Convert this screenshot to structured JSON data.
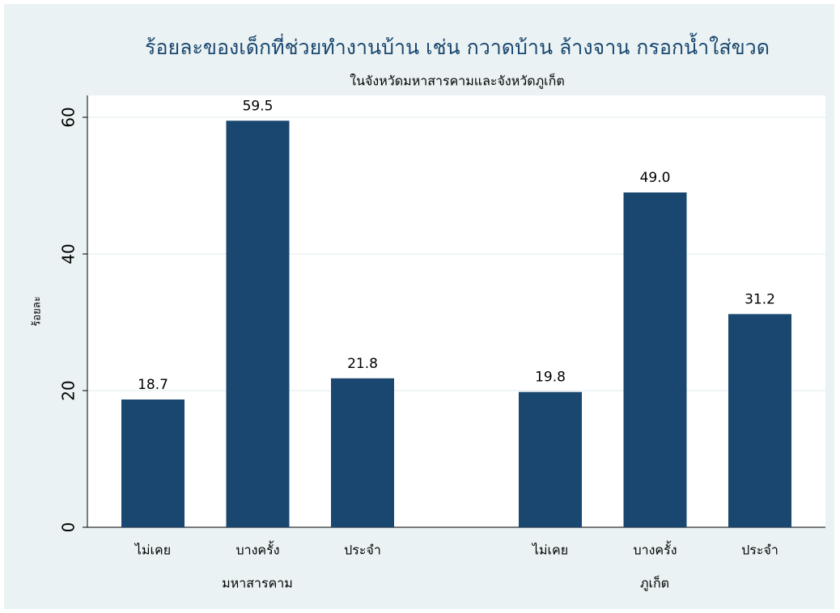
{
  "chart_data": {
    "type": "bar",
    "title": "ร้อยละของเด็กที่ช่วยทำงานบ้าน เช่น กวาดบ้าน ล้างจาน กรอกน้ำใส่ขวด",
    "subtitle": "ในจังหวัดมหาสารคามและจังหวัดภูเก็ต",
    "y_label": "ร้อยละ",
    "groups": [
      {
        "name": "มหาสารคาม",
        "categories": [
          "ไม่เคย",
          "บางครั้ง",
          "ประจำ"
        ],
        "values": [
          18.7,
          59.5,
          21.8
        ],
        "value_labels": [
          "18.7",
          "59.5",
          "21.8"
        ]
      },
      {
        "name": "ภูเก็ต",
        "categories": [
          "ไม่เคย",
          "บางครั้ง",
          "ประจำ"
        ],
        "values": [
          19.8,
          49.0,
          31.2
        ],
        "value_labels": [
          "19.8",
          "49.0",
          "31.2"
        ]
      }
    ],
    "color": "#1a476f",
    "ylim": [
      0,
      63.2
    ],
    "yticks": [
      0,
      20,
      40,
      60
    ],
    "grid": true
  }
}
